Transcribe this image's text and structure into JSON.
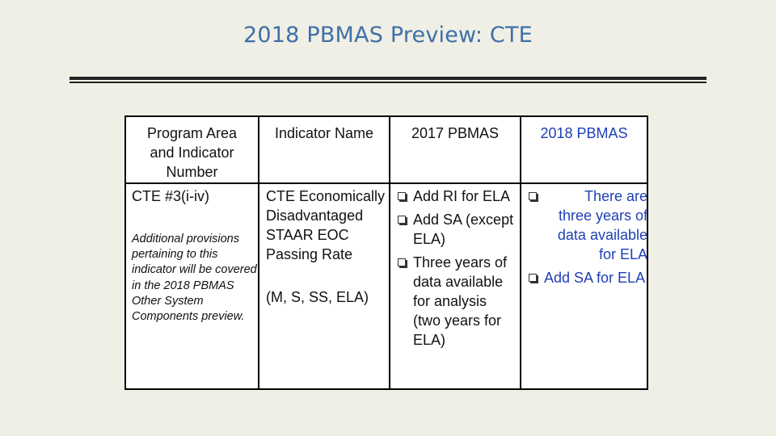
{
  "slide": {
    "title": "2018 PBMAS Preview: CTE"
  },
  "table": {
    "headers": {
      "col1": "Program Area and Indicator Number",
      "col2": "Indicator Name",
      "col3": "2017 PBMAS",
      "col4": "2018 PBMAS"
    },
    "row": {
      "program_area": "CTE #3(i-iv)",
      "program_note": "Additional provisions pertaining to this indicator will be covered in the 2018 PBMAS Other System Components preview.",
      "indicator_name": "CTE Economically Disadvantaged STAAR EOC Passing Rate",
      "indicator_subjects": "(M, S, SS, ELA)",
      "pbmas_2017": [
        "Add RI for ELA",
        "Add SA (except ELA)",
        "Three years of data available for analysis (two years for ELA)"
      ],
      "pbmas_2018": [
        "There are three years of data available for ELA",
        "Add SA for ELA"
      ]
    }
  },
  "colors": {
    "title": "#3f6fa6",
    "col4_text": "#1f3fb5",
    "background": "#efefe6"
  },
  "icons": {
    "bullet": "checkbox-bullet-icon"
  }
}
